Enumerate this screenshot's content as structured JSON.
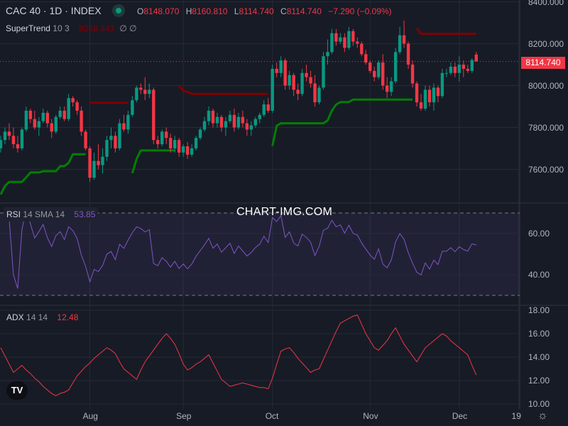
{
  "header": {
    "symbol_title": "CAC 40 · 1D · INDEX",
    "market_status_color": "#089981",
    "ohlc": {
      "o_label": "O",
      "o": "8148.070",
      "h_label": "H",
      "h": "8160.810",
      "l_label": "L",
      "l": "8114.740",
      "c_label": "C",
      "c": "8114.740",
      "change": "−7.290 (−0.09%)"
    }
  },
  "supertrend": {
    "name": "SuperTrend",
    "params": "10 3",
    "value": "8258.343",
    "extra": "∅ ∅",
    "up_color": "#008000",
    "down_color": "#800000"
  },
  "rsi": {
    "name": "RSI",
    "params": "14 SMA 14",
    "value": "53.85",
    "color": "#7e57c2"
  },
  "adx": {
    "name": "ADX",
    "params": "14 14",
    "value": "12.48",
    "color": "#f23645"
  },
  "watermark": "CHART-IMG.COM",
  "logo": "TV",
  "last_price_label": "8114.740",
  "colors": {
    "up": "#089981",
    "down": "#f23645",
    "background": "#171b26",
    "grid": "#262a36"
  },
  "chart_data": [
    {
      "type": "candlestick",
      "title": "CAC 40 · 1D · INDEX",
      "ylim": [
        7500,
        8420
      ],
      "y_ticks": [
        "8400.000",
        "8200.000",
        "8000.000",
        "7800.000",
        "7600.000"
      ],
      "y_tick_values": [
        8400,
        8200,
        8000,
        7800,
        7600
      ],
      "x_ticks": [
        {
          "label": "Aug",
          "index": 21
        },
        {
          "label": "Sep",
          "index": 43
        },
        {
          "label": "Oct",
          "index": 64
        },
        {
          "label": "Nov",
          "index": 87
        },
        {
          "label": "Dec",
          "index": 108
        },
        {
          "label": "19",
          "index": 122
        }
      ],
      "grid": true,
      "ohlc": [
        [
          7700,
          7760,
          7680,
          7740
        ],
        [
          7740,
          7800,
          7720,
          7780
        ],
        [
          7780,
          7820,
          7740,
          7760
        ],
        [
          7760,
          7800,
          7700,
          7720
        ],
        [
          7720,
          7760,
          7680,
          7700
        ],
        [
          7700,
          7800,
          7690,
          7790
        ],
        [
          7790,
          7900,
          7780,
          7880
        ],
        [
          7880,
          7890,
          7820,
          7840
        ],
        [
          7840,
          7880,
          7790,
          7800
        ],
        [
          7800,
          7850,
          7760,
          7830
        ],
        [
          7830,
          7890,
          7820,
          7870
        ],
        [
          7870,
          7880,
          7800,
          7820
        ],
        [
          7820,
          7840,
          7750,
          7780
        ],
        [
          7780,
          7860,
          7770,
          7850
        ],
        [
          7850,
          7900,
          7840,
          7880
        ],
        [
          7880,
          7900,
          7830,
          7840
        ],
        [
          7840,
          7960,
          7830,
          7940
        ],
        [
          7940,
          7950,
          7900,
          7920
        ],
        [
          7920,
          7930,
          7860,
          7880
        ],
        [
          7880,
          7900,
          7760,
          7780
        ],
        [
          7780,
          7790,
          7690,
          7700
        ],
        [
          7700,
          7710,
          7540,
          7560
        ],
        [
          7560,
          7680,
          7550,
          7640
        ],
        [
          7640,
          7720,
          7600,
          7620
        ],
        [
          7620,
          7700,
          7580,
          7660
        ],
        [
          7660,
          7760,
          7640,
          7740
        ],
        [
          7740,
          7800,
          7700,
          7760
        ],
        [
          7760,
          7780,
          7680,
          7700
        ],
        [
          7700,
          7840,
          7690,
          7820
        ],
        [
          7820,
          7860,
          7780,
          7790
        ],
        [
          7790,
          7880,
          7770,
          7860
        ],
        [
          7860,
          7950,
          7850,
          7930
        ],
        [
          7930,
          8000,
          7920,
          7990
        ],
        [
          7990,
          8010,
          7960,
          7980
        ],
        [
          7980,
          8040,
          7930,
          7960
        ],
        [
          7960,
          8010,
          7940,
          7980
        ],
        [
          7980,
          7990,
          7720,
          7740
        ],
        [
          7740,
          7760,
          7700,
          7720
        ],
        [
          7720,
          7790,
          7710,
          7780
        ],
        [
          7780,
          7800,
          7720,
          7750
        ],
        [
          7750,
          7770,
          7680,
          7700
        ],
        [
          7700,
          7760,
          7680,
          7740
        ],
        [
          7740,
          7750,
          7660,
          7680
        ],
        [
          7680,
          7720,
          7660,
          7710
        ],
        [
          7710,
          7730,
          7650,
          7670
        ],
        [
          7670,
          7720,
          7660,
          7700
        ],
        [
          7700,
          7760,
          7690,
          7750
        ],
        [
          7750,
          7800,
          7740,
          7790
        ],
        [
          7790,
          7850,
          7780,
          7830
        ],
        [
          7830,
          7900,
          7810,
          7880
        ],
        [
          7880,
          7890,
          7800,
          7820
        ],
        [
          7820,
          7870,
          7800,
          7850
        ],
        [
          7850,
          7860,
          7780,
          7800
        ],
        [
          7800,
          7850,
          7760,
          7830
        ],
        [
          7830,
          7880,
          7820,
          7860
        ],
        [
          7860,
          7890,
          7780,
          7800
        ],
        [
          7800,
          7870,
          7790,
          7850
        ],
        [
          7850,
          7880,
          7800,
          7820
        ],
        [
          7820,
          7840,
          7760,
          7790
        ],
        [
          7790,
          7830,
          7760,
          7810
        ],
        [
          7810,
          7850,
          7800,
          7840
        ],
        [
          7840,
          7870,
          7820,
          7860
        ],
        [
          7860,
          7930,
          7850,
          7910
        ],
        [
          7910,
          7940,
          7870,
          7880
        ],
        [
          7880,
          8100,
          7870,
          8080
        ],
        [
          8080,
          8110,
          8040,
          8060
        ],
        [
          8060,
          8140,
          8040,
          8120
        ],
        [
          8120,
          8130,
          7980,
          8000
        ],
        [
          8000,
          8070,
          7980,
          8050
        ],
        [
          8050,
          8060,
          7950,
          7980
        ],
        [
          7980,
          8010,
          7930,
          7960
        ],
        [
          7960,
          8080,
          7950,
          8060
        ],
        [
          8060,
          8100,
          8020,
          8040
        ],
        [
          8040,
          8070,
          7990,
          8010
        ],
        [
          8010,
          8050,
          7900,
          7920
        ],
        [
          7920,
          8000,
          7910,
          7990
        ],
        [
          7990,
          8160,
          7980,
          8140
        ],
        [
          8140,
          8220,
          8100,
          8160
        ],
        [
          8160,
          8270,
          8150,
          8250
        ],
        [
          8250,
          8270,
          8190,
          8210
        ],
        [
          8210,
          8250,
          8200,
          8230
        ],
        [
          8230,
          8250,
          8160,
          8180
        ],
        [
          8180,
          8280,
          8170,
          8260
        ],
        [
          8260,
          8270,
          8190,
          8210
        ],
        [
          8210,
          8230,
          8180,
          8200
        ],
        [
          8200,
          8210,
          8140,
          8150
        ],
        [
          8150,
          8170,
          8100,
          8110
        ],
        [
          8110,
          8120,
          8060,
          8070
        ],
        [
          8070,
          8090,
          8020,
          8040
        ],
        [
          8040,
          8120,
          8030,
          8110
        ],
        [
          8110,
          8150,
          7980,
          8000
        ],
        [
          8000,
          8040,
          7940,
          7970
        ],
        [
          7970,
          8040,
          7950,
          8020
        ],
        [
          8020,
          8180,
          8010,
          8160
        ],
        [
          8160,
          8280,
          8150,
          8240
        ],
        [
          8240,
          8310,
          8180,
          8200
        ],
        [
          8200,
          8210,
          8080,
          8100
        ],
        [
          8100,
          8120,
          7990,
          8010
        ],
        [
          8010,
          8020,
          7900,
          7920
        ],
        [
          7920,
          7960,
          7880,
          7890
        ],
        [
          7890,
          8000,
          7880,
          7980
        ],
        [
          7980,
          8000,
          7900,
          7920
        ],
        [
          7920,
          8010,
          7880,
          7990
        ],
        [
          7990,
          8000,
          7920,
          7950
        ],
        [
          7950,
          8080,
          7940,
          8060
        ],
        [
          8060,
          8080,
          8040,
          8060
        ],
        [
          8060,
          8110,
          8050,
          8090
        ],
        [
          8090,
          8110,
          8040,
          8060
        ],
        [
          8060,
          8140,
          8020,
          8100
        ],
        [
          8100,
          8120,
          8040,
          8080
        ],
        [
          8080,
          8100,
          8060,
          8070
        ],
        [
          8070,
          8130,
          8060,
          8122
        ],
        [
          8148.07,
          8160.81,
          8114.74,
          8114.74
        ]
      ]
    },
    {
      "type": "line",
      "title": "RSI 14 SMA 14",
      "ylim": [
        25,
        75
      ],
      "y_ticks": [
        "60.00",
        "40.00"
      ],
      "y_tick_values": [
        60,
        40
      ],
      "bands": [
        30,
        70
      ]
    },
    {
      "type": "line",
      "title": "ADX 14 14",
      "ylim": [
        9.9,
        18.3
      ],
      "y_ticks": [
        "18.00",
        "16.00",
        "14.00",
        "12.00",
        "10.00"
      ],
      "y_tick_values": [
        18,
        16,
        14,
        12,
        10
      ],
      "values": [
        14.8,
        14.1,
        13.4,
        12.7,
        13.0,
        13.3,
        12.9,
        12.6,
        12.2,
        11.9,
        11.5,
        11.2,
        10.9,
        10.7,
        10.9,
        11.0,
        11.2,
        11.8,
        12.4,
        12.8,
        13.2,
        13.5,
        13.9,
        14.2,
        14.5,
        14.8,
        14.6,
        14.3,
        13.6,
        13.0,
        12.7,
        12.4,
        12.1,
        12.9,
        13.6,
        14.1,
        14.6,
        15.1,
        15.6,
        16.0,
        15.6,
        15.1,
        14.3,
        13.4,
        12.9,
        13.1,
        13.4,
        13.6,
        13.9,
        14.2,
        13.5,
        12.8,
        12.1,
        11.8,
        11.5,
        11.6,
        11.7,
        11.8,
        11.7,
        11.6,
        11.5,
        11.4,
        11.4,
        11.3,
        12.2,
        13.4,
        14.5,
        14.7,
        14.8,
        14.4,
        13.9,
        13.5,
        13.1,
        12.7,
        12.9,
        13.0,
        13.8,
        14.6,
        15.4,
        16.2,
        16.9,
        17.1,
        17.3,
        17.5,
        17.6,
        16.8,
        16.0,
        15.4,
        14.8,
        14.6,
        15.0,
        15.4,
        16.0,
        16.5,
        15.8,
        15.1,
        14.6,
        14.1,
        13.6,
        14.2,
        14.8,
        15.1,
        15.4,
        15.7,
        16.0,
        15.8,
        15.4,
        15.1,
        14.8,
        14.5,
        14.2,
        13.3,
        12.48
      ]
    }
  ]
}
